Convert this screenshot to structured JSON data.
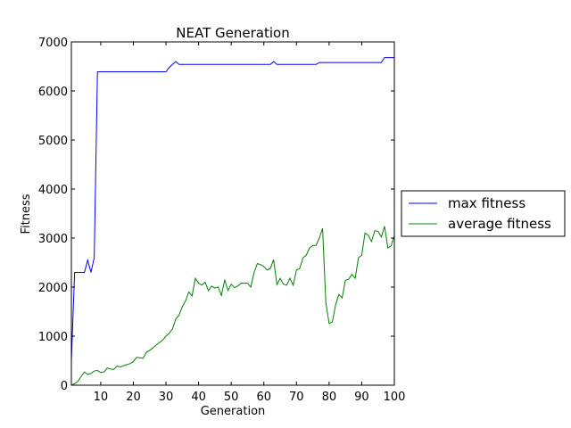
{
  "chart_data": {
    "type": "line",
    "title": "NEAT Generation",
    "xlabel": "Generation",
    "ylabel": "Fitness",
    "xlim": [
      1,
      100
    ],
    "ylim": [
      0,
      7000
    ],
    "xticks": [
      10,
      20,
      30,
      40,
      50,
      60,
      70,
      80,
      90,
      100
    ],
    "yticks": [
      0,
      1000,
      2000,
      3000,
      4000,
      5000,
      6000,
      7000
    ],
    "grid": false,
    "legend_position": "outside-right",
    "series": [
      {
        "name": "max fitness",
        "color": "#0000ff",
        "x": [
          1,
          2,
          3,
          4,
          5,
          6,
          7,
          8,
          9,
          10,
          20,
          28,
          29,
          30,
          31,
          32,
          33,
          34,
          40,
          50,
          60,
          61,
          62,
          63,
          64,
          65,
          70,
          75,
          76,
          77,
          80,
          85,
          90,
          95,
          96,
          97,
          98,
          99,
          100
        ],
        "y": [
          500,
          2300,
          2300,
          2300,
          2300,
          2550,
          2300,
          2600,
          6390,
          6390,
          6390,
          6390,
          6390,
          6390,
          6480,
          6540,
          6600,
          6540,
          6540,
          6540,
          6540,
          6540,
          6540,
          6600,
          6540,
          6540,
          6540,
          6540,
          6540,
          6580,
          6580,
          6580,
          6580,
          6580,
          6580,
          6680,
          6680,
          6680,
          6680
        ]
      },
      {
        "name": "average fitness",
        "color": "#008000",
        "x": [
          1,
          2,
          3,
          4,
          5,
          6,
          7,
          8,
          9,
          10,
          11,
          12,
          13,
          14,
          15,
          16,
          17,
          18,
          19,
          20,
          21,
          22,
          23,
          24,
          25,
          26,
          27,
          28,
          29,
          30,
          31,
          32,
          33,
          34,
          35,
          36,
          37,
          38,
          39,
          40,
          41,
          42,
          43,
          44,
          45,
          46,
          47,
          48,
          49,
          50,
          51,
          52,
          53,
          54,
          55,
          56,
          57,
          58,
          59,
          60,
          61,
          62,
          63,
          64,
          65,
          66,
          67,
          68,
          69,
          70,
          71,
          72,
          73,
          74,
          75,
          76,
          77,
          78,
          79,
          80,
          81,
          82,
          83,
          84,
          85,
          86,
          87,
          88,
          89,
          90,
          91,
          92,
          93,
          94,
          95,
          96,
          97,
          98,
          99,
          100
        ],
        "y": [
          0,
          30,
          80,
          180,
          270,
          220,
          240,
          290,
          300,
          260,
          270,
          350,
          330,
          320,
          390,
          370,
          400,
          420,
          440,
          480,
          570,
          560,
          550,
          670,
          710,
          760,
          820,
          870,
          920,
          1000,
          1060,
          1150,
          1350,
          1430,
          1600,
          1720,
          1900,
          1820,
          2180,
          2080,
          2040,
          2100,
          1930,
          2020,
          1980,
          2000,
          1830,
          2150,
          1930,
          2060,
          1990,
          2020,
          2080,
          2080,
          2080,
          2000,
          2300,
          2480,
          2460,
          2420,
          2350,
          2380,
          2560,
          2050,
          2180,
          2060,
          2040,
          2180,
          2040,
          2350,
          2380,
          2600,
          2650,
          2800,
          2850,
          2850,
          3000,
          3200,
          1680,
          1260,
          1290,
          1640,
          1850,
          1780,
          2140,
          2160,
          2260,
          2180,
          2600,
          2650,
          3100,
          3060,
          2930,
          3150,
          3140,
          3020,
          3240,
          2800,
          2840,
          3050
        ]
      }
    ]
  }
}
